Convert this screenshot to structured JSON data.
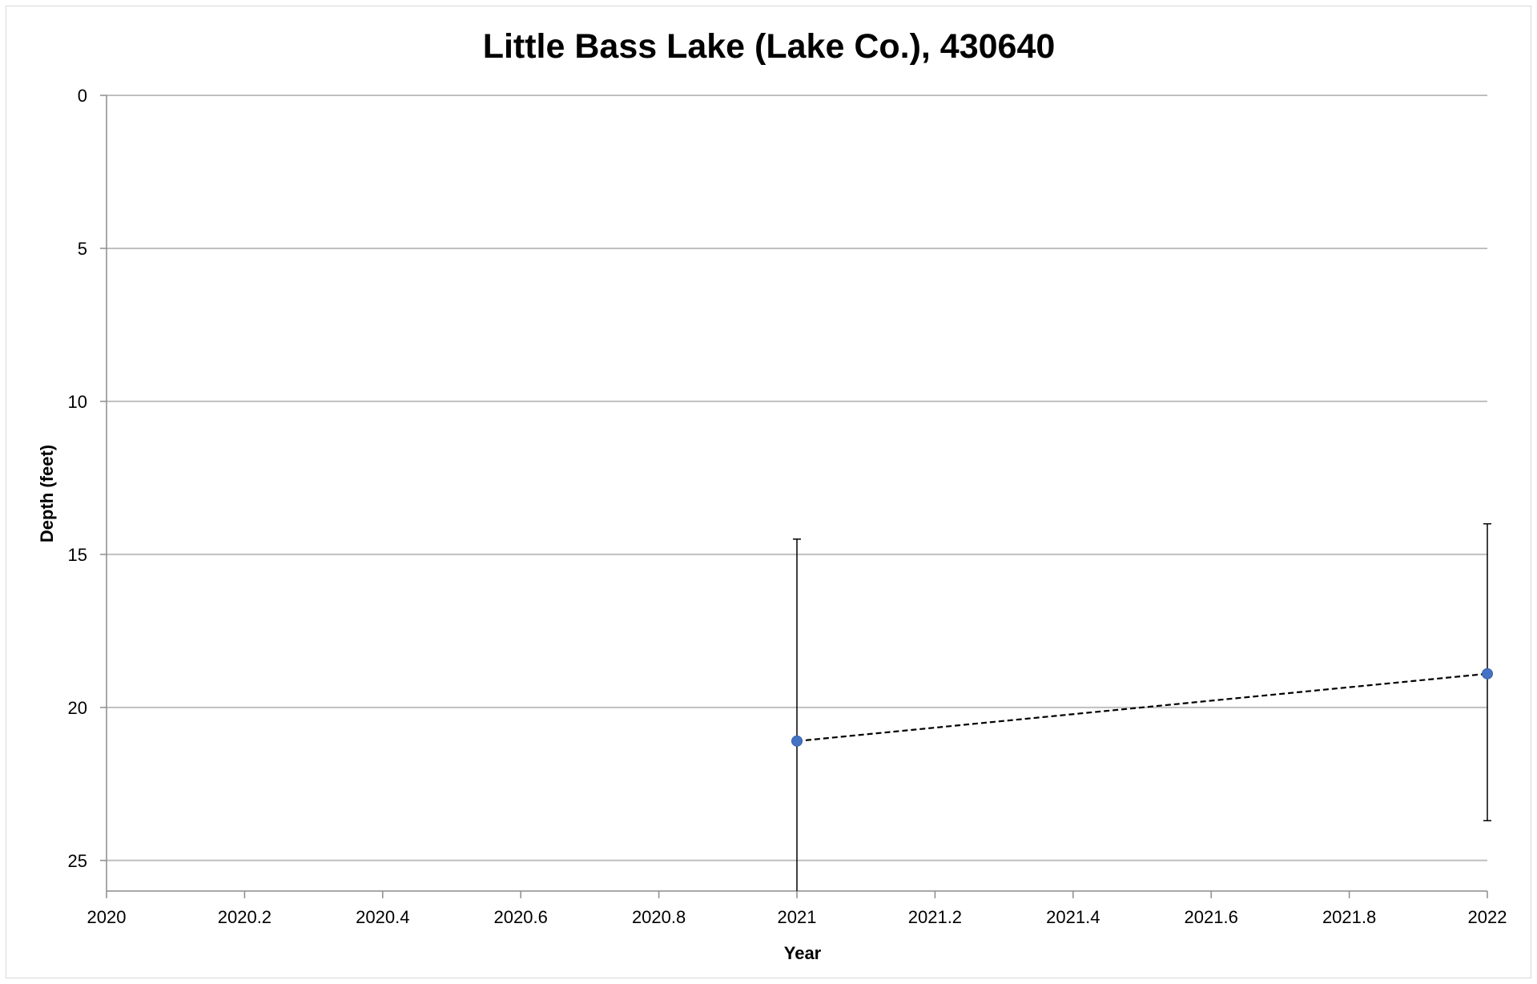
{
  "chart_data": {
    "type": "scatter",
    "title": "Little Bass Lake (Lake Co.), 430640",
    "xlabel": "Year",
    "ylabel": "Depth (feet)",
    "xlim": [
      2020,
      2022
    ],
    "ylim": [
      0,
      26
    ],
    "y_inverted": true,
    "x_ticks": [
      2020,
      2020.2,
      2020.4,
      2020.6,
      2020.8,
      2021,
      2021.2,
      2021.4,
      2021.6,
      2021.8,
      2022
    ],
    "x_tick_labels": [
      "2020",
      "2020.2",
      "2020.4",
      "2020.6",
      "2020.8",
      "2021",
      "2021.2",
      "2021.4",
      "2021.6",
      "2021.8",
      "2022"
    ],
    "y_ticks": [
      0,
      5,
      10,
      15,
      20,
      25
    ],
    "y_tick_labels": [
      "0",
      "5",
      "10",
      "15",
      "20",
      "25"
    ],
    "grid": "horizontal",
    "series": [
      {
        "x": [
          2021,
          2022
        ],
        "y": [
          21.1,
          18.9
        ],
        "error_low": [
          14.5,
          14.0
        ],
        "error_high": [
          26,
          23.7
        ],
        "marker_color": "#4472c4",
        "line_style": "dashed",
        "line_color": "#000000"
      }
    ]
  }
}
